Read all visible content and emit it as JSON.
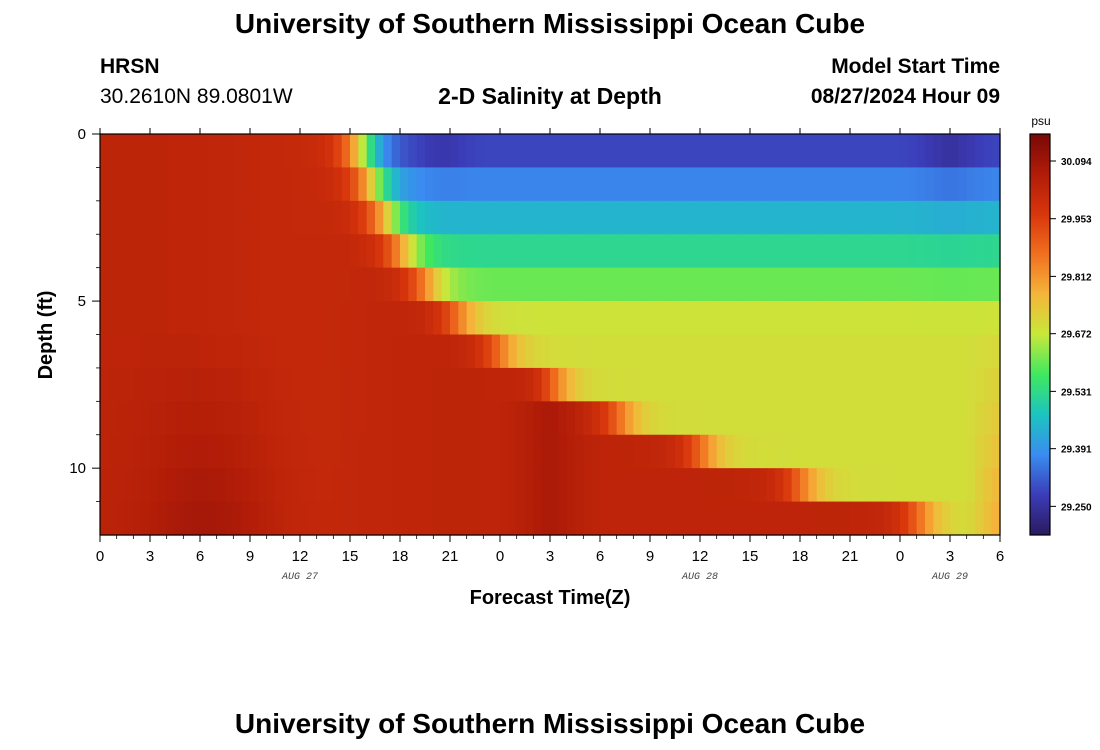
{
  "header": {
    "title": "University of Southern Mississippi Ocean Cube",
    "station": "HRSN",
    "coordinates": "30.2610N  89.0801W",
    "chart_title": "2-D Salinity at Depth",
    "model_start_label": "Model Start Time",
    "model_start_value": "08/27/2024 Hour 09"
  },
  "footer": {
    "title": "University of Southern Mississippi Ocean Cube"
  },
  "chart_data": {
    "type": "heatmap",
    "title": "2-D Salinity at Depth",
    "xlabel": "Forecast Time(Z)",
    "ylabel": "Depth (ft)",
    "x_hours_range": [
      0,
      54
    ],
    "y_depth_range": [
      0,
      12
    ],
    "y_ticks": [
      0,
      5,
      10
    ],
    "x_tick_labels": [
      "0",
      "3",
      "6",
      "9",
      "12",
      "15",
      "18",
      "21",
      "0",
      "3",
      "6",
      "9",
      "12",
      "15",
      "18",
      "21",
      "0",
      "3",
      "6"
    ],
    "date_labels": [
      {
        "text": "AUG 27",
        "hour": 12
      },
      {
        "text": "AUG 28",
        "hour": 36
      },
      {
        "text": "AUG 29",
        "hour": 51
      }
    ],
    "colorbar": {
      "unit": "psu",
      "range": [
        29.18,
        30.16
      ],
      "tick_values": [
        30.094,
        29.953,
        29.812,
        29.672,
        29.531,
        29.391,
        29.25
      ],
      "tick_labels": [
        "30.094",
        "29.953",
        "29.812",
        "29.672",
        "29.531",
        "29.391",
        "29.250"
      ],
      "colors": [
        "#2a1a5e",
        "#3b3cb8",
        "#3a8cf0",
        "#1cc4c0",
        "#3fe860",
        "#c8e83a",
        "#f5b53a",
        "#f07020",
        "#d8360c",
        "#b01c08",
        "#7a0808"
      ]
    },
    "grid": false
  }
}
